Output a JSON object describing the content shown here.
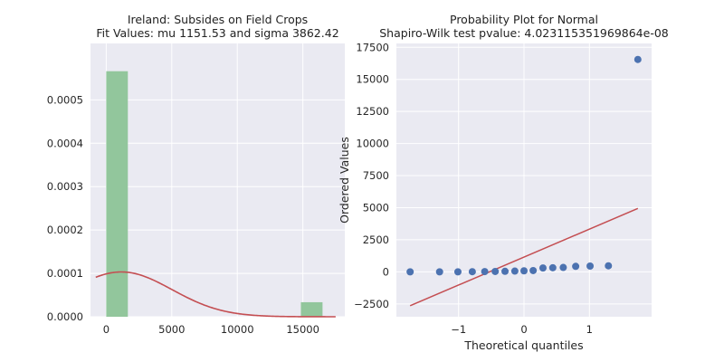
{
  "colors": {
    "axes_bg": "#eaeaf2",
    "grid": "#ffffff",
    "hist_bar": "#92c69c",
    "fit_curve": "#c44e52",
    "scatter_point": "#4c72b0",
    "fit_line": "#c44e52"
  },
  "chart_data": [
    {
      "type": "bar",
      "title": "Ireland: Subsides on Field Crops",
      "subtitle": "Fit Values: mu 1151.53 and sigma 3862.42",
      "xlabel": "",
      "ylabel": "",
      "xlim": [
        -1200,
        18200
      ],
      "ylim": [
        0,
        0.00063
      ],
      "xticks": [
        0,
        5000,
        10000,
        15000
      ],
      "yticks": [
        0.0,
        0.0001,
        0.0002,
        0.0003,
        0.0004,
        0.0005
      ],
      "ytick_labels": [
        "0.0000",
        "0.0001",
        "0.0002",
        "0.0003",
        "0.0004",
        "0.0005"
      ],
      "grid": true,
      "bins": [
        {
          "x0": 0,
          "x1": 1650,
          "density": 0.000566
        },
        {
          "x0": 1650,
          "x1": 3300,
          "density": 0
        },
        {
          "x0": 3300,
          "x1": 4950,
          "density": 0
        },
        {
          "x0": 4950,
          "x1": 6600,
          "density": 0
        },
        {
          "x0": 6600,
          "x1": 8250,
          "density": 0
        },
        {
          "x0": 8250,
          "x1": 9900,
          "density": 0
        },
        {
          "x0": 9900,
          "x1": 11550,
          "density": 0
        },
        {
          "x0": 11550,
          "x1": 13200,
          "density": 0
        },
        {
          "x0": 13200,
          "x1": 14850,
          "density": 0
        },
        {
          "x0": 14850,
          "x1": 16500,
          "density": 3.35e-05
        }
      ],
      "fit": {
        "mu": 1151.53,
        "sigma": 3862.42,
        "x_start": -800,
        "x_end": 17500
      }
    },
    {
      "type": "scatter",
      "title": "Probability Plot for Normal",
      "subtitle": "Shapiro-Wilk test pvalue: 4.023115351969864e-08",
      "xlabel": "Theoretical quantiles",
      "ylabel": "Ordered Values",
      "xlim": [
        -1.95,
        1.95
      ],
      "ylim": [
        -3500,
        17800
      ],
      "xticks": [
        -1,
        0,
        1
      ],
      "yticks": [
        -2500,
        0,
        2500,
        5000,
        7500,
        10000,
        12500,
        15000,
        17500
      ],
      "grid": true,
      "points": [
        {
          "x": -1.74,
          "y": 0
        },
        {
          "x": -1.29,
          "y": 0
        },
        {
          "x": -1.01,
          "y": 0
        },
        {
          "x": -0.79,
          "y": 10
        },
        {
          "x": -0.6,
          "y": 20
        },
        {
          "x": -0.44,
          "y": 30
        },
        {
          "x": -0.29,
          "y": 40
        },
        {
          "x": -0.14,
          "y": 60
        },
        {
          "x": 0.0,
          "y": 80
        },
        {
          "x": 0.14,
          "y": 100
        },
        {
          "x": 0.29,
          "y": 300
        },
        {
          "x": 0.44,
          "y": 320
        },
        {
          "x": 0.6,
          "y": 340
        },
        {
          "x": 0.79,
          "y": 430
        },
        {
          "x": 1.01,
          "y": 450
        },
        {
          "x": 1.29,
          "y": 470
        },
        {
          "x": 1.74,
          "y": 16550
        }
      ],
      "fit_line": {
        "x": [
          -1.74,
          1.74
        ],
        "y": [
          -2640,
          4940
        ]
      }
    }
  ]
}
